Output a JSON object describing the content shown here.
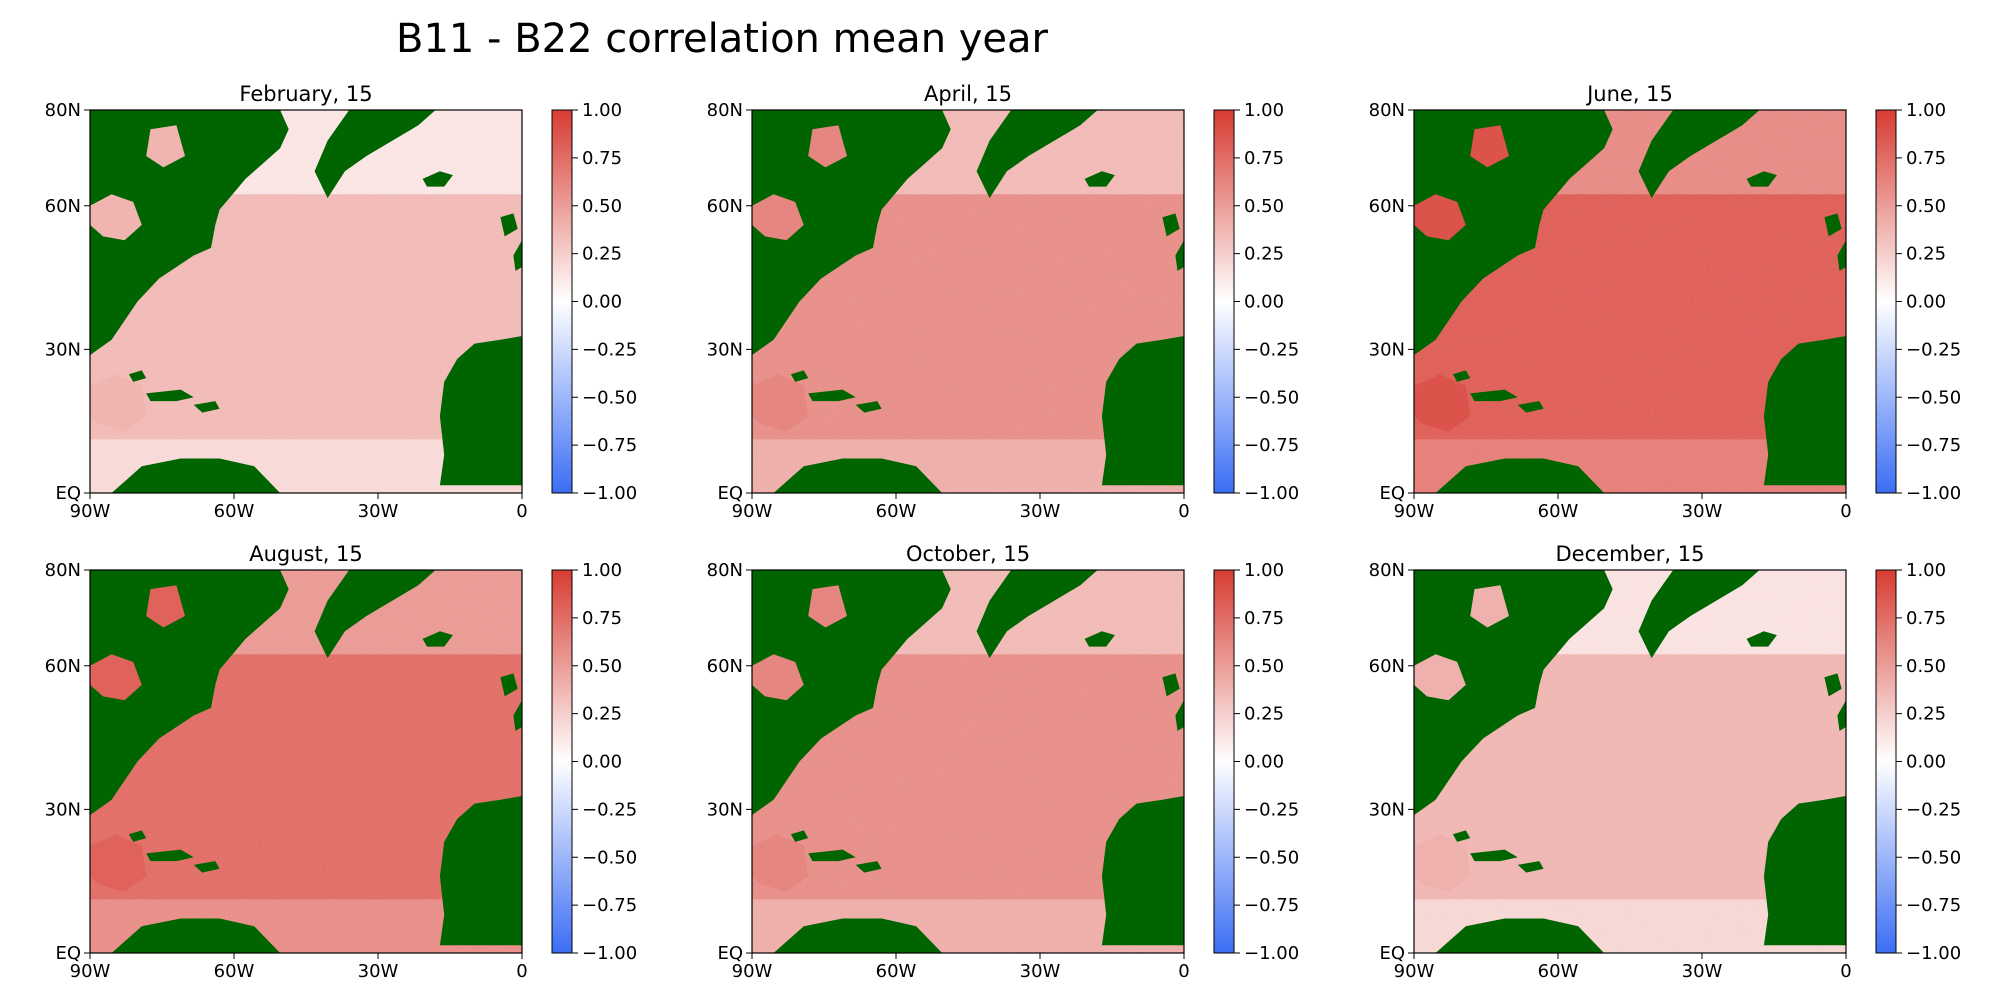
{
  "figure": {
    "title": "B11 - B22 correlation mean year"
  },
  "colors": {
    "land": "#006400",
    "cmap_low": "#3b6ef5",
    "cmap_mid": "#ffffff",
    "cmap_high": "#d73c32",
    "axis": "#000000"
  },
  "chart_data": [
    {
      "type": "heatmap",
      "title": "February, 15",
      "month": "February",
      "day": 15,
      "x_ticks": [
        "90W",
        "60W",
        "30W",
        "0"
      ],
      "y_ticks": [
        "EQ",
        "30N",
        "60N",
        "80N"
      ],
      "xlim": [
        -90,
        0
      ],
      "ylim": [
        0,
        80
      ],
      "colorbar": {
        "range": [
          -1,
          1
        ],
        "ticks": [
          "1.00",
          "0.75",
          "0.50",
          "0.25",
          "0.00",
          "−0.25",
          "−0.50",
          "−0.75",
          "−1.00"
        ]
      },
      "mean_correlation_estimate": 0.38
    },
    {
      "type": "heatmap",
      "title": "April, 15",
      "month": "April",
      "day": 15,
      "x_ticks": [
        "90W",
        "60W",
        "30W",
        "0"
      ],
      "y_ticks": [
        "EQ",
        "30N",
        "60N",
        "80N"
      ],
      "xlim": [
        -90,
        0
      ],
      "ylim": [
        0,
        80
      ],
      "colorbar": {
        "range": [
          -1,
          1
        ],
        "ticks": [
          "1.00",
          "0.75",
          "0.50",
          "0.25",
          "0.00",
          "−0.25",
          "−0.50",
          "−0.75",
          "−1.00"
        ]
      },
      "mean_correlation_estimate": 0.62
    },
    {
      "type": "heatmap",
      "title": "June, 15",
      "month": "June",
      "day": 15,
      "x_ticks": [
        "90W",
        "60W",
        "30W",
        "0"
      ],
      "y_ticks": [
        "EQ",
        "30N",
        "60N",
        "80N"
      ],
      "xlim": [
        -90,
        0
      ],
      "ylim": [
        0,
        80
      ],
      "colorbar": {
        "range": [
          -1,
          1
        ],
        "ticks": [
          "1.00",
          "0.75",
          "0.50",
          "0.25",
          "0.00",
          "−0.25",
          "−0.50",
          "−0.75",
          "−1.00"
        ]
      },
      "mean_correlation_estimate": 0.88
    },
    {
      "type": "heatmap",
      "title": "August, 15",
      "month": "August",
      "day": 15,
      "x_ticks": [
        "90W",
        "60W",
        "30W",
        "0"
      ],
      "y_ticks": [
        "EQ",
        "30N",
        "60N",
        "80N"
      ],
      "xlim": [
        -90,
        0
      ],
      "ylim": [
        0,
        80
      ],
      "colorbar": {
        "range": [
          -1,
          1
        ],
        "ticks": [
          "1.00",
          "0.75",
          "0.50",
          "0.25",
          "0.00",
          "−0.25",
          "−0.50",
          "−0.75",
          "−1.00"
        ]
      },
      "mean_correlation_estimate": 0.8
    },
    {
      "type": "heatmap",
      "title": "October, 15",
      "month": "October",
      "day": 15,
      "x_ticks": [
        "90W",
        "60W",
        "30W",
        "0"
      ],
      "y_ticks": [
        "EQ",
        "30N",
        "60N",
        "80N"
      ],
      "xlim": [
        -90,
        0
      ],
      "ylim": [
        0,
        80
      ],
      "colorbar": {
        "range": [
          -1,
          1
        ],
        "ticks": [
          "1.00",
          "0.75",
          "0.50",
          "0.25",
          "0.00",
          "−0.25",
          "−0.50",
          "−0.75",
          "−1.00"
        ]
      },
      "mean_correlation_estimate": 0.62
    },
    {
      "type": "heatmap",
      "title": "December, 15",
      "month": "December",
      "day": 15,
      "x_ticks": [
        "90W",
        "60W",
        "30W",
        "0"
      ],
      "y_ticks": [
        "EQ",
        "30N",
        "60N",
        "80N"
      ],
      "xlim": [
        -90,
        0
      ],
      "ylim": [
        0,
        80
      ],
      "colorbar": {
        "range": [
          -1,
          1
        ],
        "ticks": [
          "1.00",
          "0.75",
          "0.50",
          "0.25",
          "0.00",
          "−0.25",
          "−0.50",
          "−0.75",
          "−1.00"
        ]
      },
      "mean_correlation_estimate": 0.4
    }
  ]
}
